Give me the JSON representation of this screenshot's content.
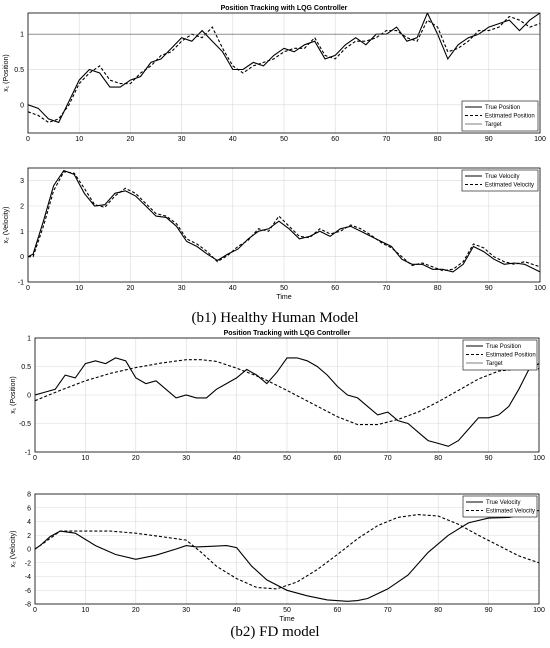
{
  "captions": [
    "(b1) Healthy Human Model",
    "(b2) FD model"
  ],
  "colors": {
    "line": "#000000",
    "grid": "#d9d9d9",
    "target": "#555555"
  },
  "chart_data": [
    {
      "type": "line",
      "title": "Position Tracking with LQG Controller",
      "xlabel": "",
      "ylabel": "x₁ (Position)",
      "xlim": [
        0,
        100
      ],
      "ylim": [
        -0.4,
        1.3
      ],
      "xticks": [
        0,
        10,
        20,
        30,
        40,
        50,
        60,
        70,
        80,
        90,
        100
      ],
      "yticks": [
        0,
        0.5,
        1
      ],
      "ytick_labels": [
        "0",
        "0.5",
        "1"
      ],
      "grid": true,
      "legend": "bottom-right",
      "series": [
        {
          "name": "True Position",
          "style": "solid",
          "x": [
            0,
            2,
            4,
            6,
            8,
            10,
            12,
            14,
            16,
            18,
            20,
            22,
            24,
            26,
            28,
            30,
            32,
            34,
            36,
            38,
            40,
            42,
            44,
            46,
            48,
            50,
            52,
            54,
            56,
            58,
            60,
            62,
            64,
            66,
            68,
            70,
            72,
            74,
            76,
            78,
            80,
            82,
            84,
            86,
            88,
            90,
            92,
            94,
            96,
            98,
            100
          ],
          "y": [
            0,
            -0.05,
            -0.2,
            -0.25,
            0.05,
            0.35,
            0.5,
            0.45,
            0.25,
            0.25,
            0.35,
            0.4,
            0.6,
            0.65,
            0.8,
            0.95,
            0.9,
            1.05,
            0.9,
            0.75,
            0.5,
            0.5,
            0.6,
            0.55,
            0.7,
            0.8,
            0.75,
            0.85,
            0.9,
            0.65,
            0.7,
            0.85,
            0.95,
            0.85,
            1.0,
            1.0,
            1.1,
            0.9,
            0.95,
            1.3,
            1.0,
            0.65,
            0.85,
            0.95,
            1.0,
            1.1,
            1.15,
            1.2,
            1.05,
            1.2,
            1.3
          ]
        },
        {
          "name": "Estimated Position",
          "style": "dashed",
          "x": [
            0,
            2,
            4,
            6,
            8,
            10,
            12,
            14,
            16,
            18,
            20,
            22,
            24,
            26,
            28,
            30,
            32,
            34,
            36,
            38,
            40,
            42,
            44,
            46,
            48,
            50,
            52,
            54,
            56,
            58,
            60,
            62,
            64,
            66,
            68,
            70,
            72,
            74,
            76,
            78,
            80,
            82,
            84,
            86,
            88,
            90,
            92,
            94,
            96,
            98,
            100
          ],
          "y": [
            -0.1,
            -0.15,
            -0.25,
            -0.2,
            0.0,
            0.3,
            0.45,
            0.55,
            0.35,
            0.3,
            0.3,
            0.45,
            0.55,
            0.7,
            0.75,
            0.9,
            1.0,
            0.95,
            1.1,
            0.8,
            0.55,
            0.45,
            0.55,
            0.6,
            0.65,
            0.75,
            0.8,
            0.8,
            0.95,
            0.7,
            0.65,
            0.8,
            0.9,
            0.9,
            0.95,
            1.05,
            1.05,
            0.95,
            0.9,
            1.2,
            1.1,
            0.75,
            0.8,
            0.9,
            1.05,
            1.05,
            1.1,
            1.25,
            1.2,
            1.1,
            1.15
          ]
        },
        {
          "name": "Target",
          "style": "solid-thin",
          "x": [
            0,
            100
          ],
          "y": [
            1,
            1
          ]
        }
      ]
    },
    {
      "type": "line",
      "title": "",
      "xlabel": "Time",
      "ylabel": "x₂ (Velocity)",
      "xlim": [
        0,
        100
      ],
      "ylim": [
        -1,
        3.5
      ],
      "xticks": [
        0,
        10,
        20,
        30,
        40,
        50,
        60,
        70,
        80,
        90,
        100
      ],
      "yticks": [
        -1,
        0,
        1,
        2,
        3
      ],
      "ytick_labels": [
        "-1",
        "0",
        "1",
        "2",
        "3"
      ],
      "grid": true,
      "legend": "top-right",
      "series": [
        {
          "name": "True Velocity",
          "style": "solid",
          "x": [
            0,
            1,
            3,
            5,
            7,
            9,
            11,
            13,
            15,
            17,
            19,
            21,
            23,
            25,
            27,
            29,
            31,
            33,
            35,
            37,
            39,
            41,
            43,
            45,
            47,
            49,
            51,
            53,
            55,
            57,
            59,
            61,
            63,
            65,
            67,
            69,
            71,
            73,
            75,
            77,
            79,
            81,
            83,
            85,
            87,
            89,
            91,
            93,
            95,
            97,
            100
          ],
          "y": [
            0,
            0.1,
            1.4,
            2.8,
            3.4,
            3.25,
            2.5,
            2.0,
            2.05,
            2.5,
            2.6,
            2.4,
            2.0,
            1.6,
            1.55,
            1.2,
            0.6,
            0.4,
            0.1,
            -0.15,
            0.1,
            0.3,
            0.7,
            1.0,
            1.1,
            1.4,
            1.1,
            0.7,
            0.8,
            1.0,
            0.8,
            1.1,
            1.2,
            1.0,
            0.8,
            0.6,
            0.4,
            -0.1,
            -0.3,
            -0.3,
            -0.5,
            -0.5,
            -0.6,
            -0.3,
            0.4,
            0.2,
            -0.1,
            -0.3,
            -0.25,
            -0.3,
            -0.6
          ]
        },
        {
          "name": "Estimated Velocity",
          "style": "dashed",
          "x": [
            0,
            1,
            3,
            5,
            7,
            9,
            11,
            13,
            15,
            17,
            19,
            21,
            23,
            25,
            27,
            29,
            31,
            33,
            35,
            37,
            39,
            41,
            43,
            45,
            47,
            49,
            51,
            53,
            55,
            57,
            59,
            61,
            63,
            65,
            67,
            69,
            71,
            73,
            75,
            77,
            79,
            81,
            83,
            85,
            87,
            89,
            91,
            93,
            95,
            97,
            100
          ],
          "y": [
            0,
            0.0,
            1.2,
            2.6,
            3.35,
            3.3,
            2.7,
            2.05,
            1.95,
            2.4,
            2.7,
            2.5,
            2.1,
            1.7,
            1.6,
            1.3,
            0.7,
            0.5,
            0.2,
            -0.2,
            0.05,
            0.4,
            0.65,
            1.1,
            1.0,
            1.6,
            1.2,
            0.8,
            0.75,
            1.1,
            0.9,
            1.0,
            1.25,
            1.1,
            0.85,
            0.55,
            0.35,
            0.0,
            -0.35,
            -0.25,
            -0.4,
            -0.55,
            -0.5,
            -0.2,
            0.5,
            0.35,
            0.0,
            -0.2,
            -0.3,
            -0.2,
            -0.4
          ]
        }
      ]
    },
    {
      "type": "line",
      "title": "Position Tracking with LQG Controller",
      "xlabel": "",
      "ylabel": "x₁ (Position)",
      "xlim": [
        0,
        100
      ],
      "ylim": [
        -1,
        1
      ],
      "xticks": [
        0,
        10,
        20,
        30,
        40,
        50,
        60,
        70,
        80,
        90,
        100
      ],
      "yticks": [
        -1,
        -0.5,
        0,
        0.5,
        1
      ],
      "ytick_labels": [
        "-1",
        "-0.5",
        "0",
        "0.5",
        "1"
      ],
      "grid": true,
      "legend": "top-right",
      "series": [
        {
          "name": "True Position",
          "style": "solid",
          "x": [
            0,
            2,
            4,
            6,
            8,
            10,
            12,
            14,
            16,
            18,
            20,
            22,
            24,
            26,
            28,
            30,
            32,
            34,
            36,
            38,
            40,
            42,
            44,
            46,
            48,
            50,
            52,
            54,
            56,
            58,
            60,
            62,
            64,
            66,
            68,
            70,
            72,
            74,
            76,
            78,
            80,
            82,
            84,
            86,
            88,
            90,
            92,
            94,
            96,
            98,
            100
          ],
          "y": [
            0,
            0.05,
            0.1,
            0.35,
            0.3,
            0.55,
            0.6,
            0.55,
            0.65,
            0.6,
            0.3,
            0.2,
            0.25,
            0.1,
            -0.05,
            0.0,
            -0.05,
            -0.05,
            0.1,
            0.2,
            0.3,
            0.45,
            0.35,
            0.2,
            0.4,
            0.65,
            0.65,
            0.6,
            0.5,
            0.35,
            0.15,
            0.0,
            -0.05,
            -0.2,
            -0.35,
            -0.3,
            -0.45,
            -0.5,
            -0.65,
            -0.8,
            -0.85,
            -0.9,
            -0.8,
            -0.6,
            -0.4,
            -0.4,
            -0.35,
            -0.2,
            0.1,
            0.45,
            0.55
          ]
        },
        {
          "name": "Estimated Position",
          "style": "dashed",
          "x": [
            0,
            5,
            10,
            15,
            20,
            25,
            30,
            33,
            36,
            40,
            45,
            50,
            55,
            60,
            64,
            68,
            72,
            76,
            80,
            84,
            88,
            92,
            96,
            100
          ],
          "y": [
            -0.1,
            0.08,
            0.25,
            0.38,
            0.48,
            0.56,
            0.62,
            0.62,
            0.59,
            0.47,
            0.3,
            0.08,
            -0.15,
            -0.38,
            -0.52,
            -0.52,
            -0.43,
            -0.3,
            -0.12,
            0.08,
            0.28,
            0.42,
            0.46,
            0.46
          ]
        },
        {
          "name": "Target",
          "style": "solid-thin",
          "x": [
            0,
            100
          ],
          "y": [
            0,
            0
          ],
          "hidden_line": true
        }
      ]
    },
    {
      "type": "line",
      "title": "",
      "xlabel": "Time",
      "ylabel": "x₂ (Velocity)",
      "xlim": [
        0,
        100
      ],
      "ylim": [
        -8,
        8
      ],
      "xticks": [
        0,
        10,
        20,
        30,
        40,
        50,
        60,
        70,
        80,
        90,
        100
      ],
      "yticks": [
        -8,
        -6,
        -4,
        -2,
        0,
        2,
        4,
        6,
        8
      ],
      "ytick_labels": [
        "-8",
        "-6",
        "-4",
        "-2",
        "0",
        "2",
        "4",
        "6",
        "8"
      ],
      "grid": true,
      "legend": "top-right",
      "series": [
        {
          "name": "True Velocity",
          "style": "solid",
          "x": [
            0,
            1,
            3,
            5,
            8,
            12,
            16,
            20,
            24,
            28,
            30,
            32,
            35,
            38,
            40,
            43,
            46,
            50,
            54,
            58,
            62,
            64,
            66,
            70,
            74,
            78,
            82,
            86,
            90,
            94,
            97,
            99,
            100
          ],
          "y": [
            0,
            0.5,
            1.8,
            2.6,
            2.3,
            0.5,
            -0.8,
            -1.5,
            -0.9,
            0.0,
            0.5,
            0.3,
            0.4,
            0.5,
            0.2,
            -2.5,
            -4.5,
            -6.0,
            -6.8,
            -7.4,
            -7.6,
            -7.5,
            -7.2,
            -5.8,
            -3.8,
            -0.5,
            2.0,
            3.8,
            4.5,
            4.6,
            5.0,
            5.5,
            5.6
          ]
        },
        {
          "name": "Estimated Velocity",
          "style": "dashed",
          "x": [
            0,
            2,
            5,
            10,
            15,
            20,
            25,
            30,
            33,
            36,
            40,
            44,
            48,
            52,
            56,
            60,
            64,
            68,
            72,
            76,
            80,
            84,
            88,
            92,
            96,
            100
          ],
          "y": [
            0,
            1.0,
            2.6,
            2.6,
            2.6,
            2.3,
            1.8,
            1.3,
            -0.5,
            -2.5,
            -4.3,
            -5.6,
            -5.8,
            -4.8,
            -3.0,
            -0.8,
            1.5,
            3.4,
            4.6,
            5.0,
            4.8,
            3.6,
            2.0,
            0.5,
            -1.0,
            -2.0
          ]
        }
      ]
    }
  ]
}
